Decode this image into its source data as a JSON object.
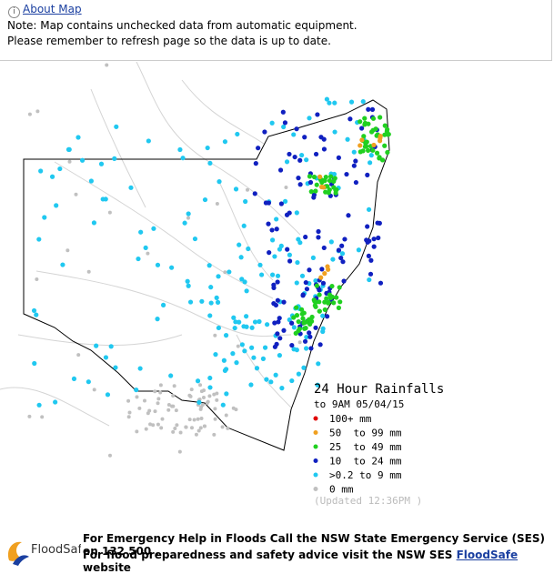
{
  "header": {
    "link": "About Map",
    "note": "Note: Map contains unchecked data from automatic equipment.",
    "reminder": "Please remember to refresh page so the data is up to date."
  },
  "legend": {
    "title": "24 Hour Rainfalls",
    "subtitle": "to 9AM 05/04/15",
    "items": [
      {
        "label": "100+ mm",
        "color": "#e00000"
      },
      {
        "label": "50  to 99 mm",
        "color": "#f0a020"
      },
      {
        "label": "25  to 49 mm",
        "color": "#20d020"
      },
      {
        "label": "10  to 24 mm",
        "color": "#1020c0"
      },
      {
        "label": ">0.2 to 9 mm",
        "color": "#20c8f0"
      },
      {
        "label": "0 mm",
        "color": "#c0c0c0"
      }
    ],
    "updated": "(Updated 12:36PM )"
  },
  "footer": {
    "logo": "FloodSafe",
    "line1": "For Emergency Help in Floods Call the NSW State Emergency Service (SES) on 132 500 .",
    "line2": "For flood preparedness and safety advice visit the NSW SES",
    "link": "FloodSafe",
    "link_suffix": "website"
  }
}
